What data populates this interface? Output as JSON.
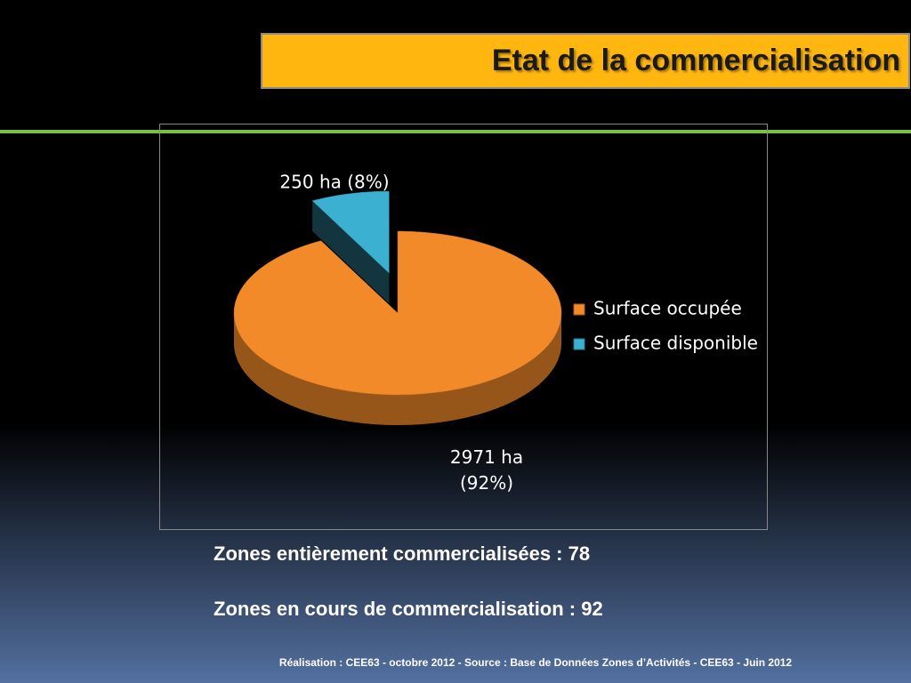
{
  "title": "Etat de la commercialisation",
  "chart_data": {
    "type": "pie",
    "categories": [
      "Surface occupée",
      "Surface disponible"
    ],
    "values": [
      2971,
      250
    ],
    "value_labels": [
      "2971 ha (92%)",
      "250 ha (8%)"
    ],
    "colors": [
      "#f28a2a",
      "#3bb0d0"
    ],
    "legend": "right"
  },
  "notes": [
    "Zones entièrement commercialisées : 78",
    "Zones en cours de commercialisation : 92"
  ],
  "footer": "Réalisation : CEE63 - octobre 2012  - Source : Base de Données Zones d’Activités - CEE63 - Juin 2012"
}
